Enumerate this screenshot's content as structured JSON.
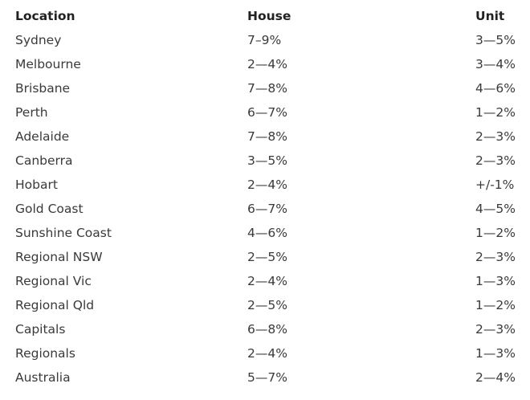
{
  "table": {
    "headers": [
      "Location",
      "House",
      "Unit"
    ],
    "rows": [
      [
        "Sydney",
        "7–9%",
        "3—5%"
      ],
      [
        "Melbourne",
        "2—4%",
        "3—4%"
      ],
      [
        "Brisbane",
        "7—8%",
        "4—6%"
      ],
      [
        "Perth",
        "6—7%",
        "1—2%"
      ],
      [
        "Adelaide",
        "7—8%",
        "2—3%"
      ],
      [
        "Canberra",
        "3—5%",
        "2—3%"
      ],
      [
        "Hobart",
        "2—4%",
        "+/-1%"
      ],
      [
        "Gold Coast",
        "6—7%",
        "4—5%"
      ],
      [
        "Sunshine Coast",
        "4—6%",
        "1—2%"
      ],
      [
        "Regional NSW",
        "2—5%",
        "2—3%"
      ],
      [
        "Regional Vic",
        "2—4%",
        "1—3%"
      ],
      [
        "Regional Qld",
        "2—5%",
        "1—2%"
      ],
      [
        "Capitals",
        "6—8%",
        "2—3%"
      ],
      [
        "Regionals",
        "2—4%",
        "1—3%"
      ],
      [
        "Australia",
        "5—7%",
        "2—4%"
      ]
    ]
  }
}
